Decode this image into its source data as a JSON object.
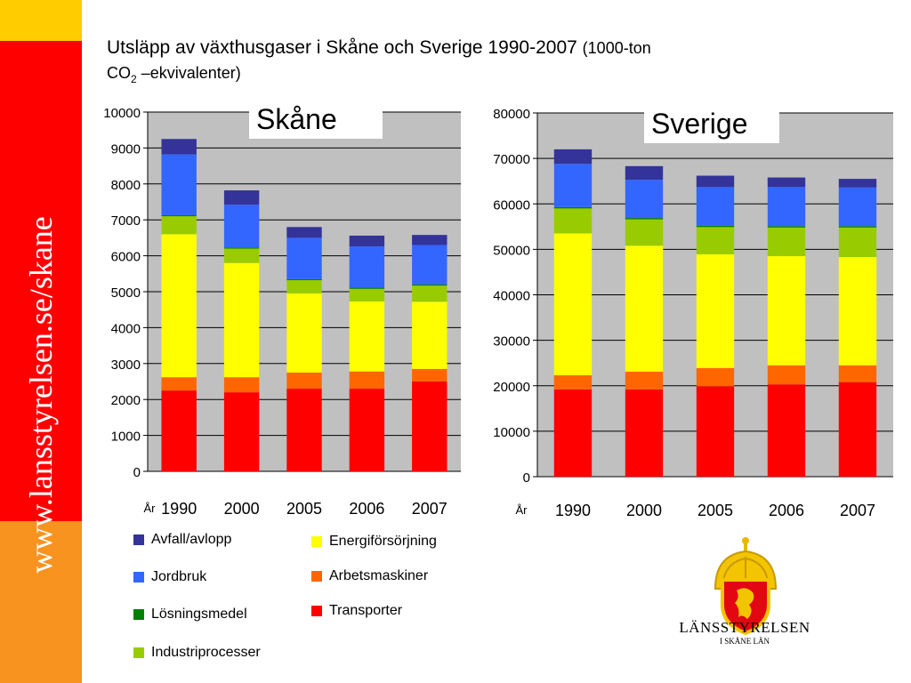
{
  "slide": {
    "url_text": "www.lansstyrelsen.se/skane",
    "title_main": "Utsläpp av växthusgaser i Skåne och Sverige 1990-2007",
    "title_unit_a": "(1000-ton",
    "title_unit_b": "CO",
    "title_unit_sub": "2",
    "title_unit_c": " –ekvivalenter)",
    "logo_name": "LÄNSSTYRELSEN",
    "logo_sub": "I SKÅNE LÄN"
  },
  "colors": {
    "yellow_band": "#FFCC00",
    "red_band": "#FF0000",
    "orange_band": "#F7931E",
    "plot_bg": "#C0C0C0"
  },
  "legend": [
    {
      "label": "Avfall/avlopp",
      "color": "#333399"
    },
    {
      "label": "Energiförsörjning",
      "color": "#FFFF00"
    },
    {
      "label": "Jordbruk",
      "color": "#3366FF"
    },
    {
      "label": "Arbetsmaskiner",
      "color": "#FF6600"
    },
    {
      "label": "Lösningsmedel",
      "color": "#008000"
    },
    {
      "label": "Transporter",
      "color": "#FF0000"
    },
    {
      "label": "Industriprocesser",
      "color": "#99CC00"
    }
  ],
  "chart_data": [
    {
      "type": "bar",
      "stacked": true,
      "title": "Skåne",
      "xlabel": "År",
      "ylabel": "",
      "ylim": [
        0,
        10000
      ],
      "yticks": [
        "0",
        "1000",
        "2000",
        "3000",
        "4000",
        "5000",
        "6000",
        "7000",
        "8000",
        "9000",
        "10000"
      ],
      "categories": [
        "1990",
        "2000",
        "2005",
        "2006",
        "2007"
      ],
      "grid": true,
      "series": [
        {
          "name": "Transporter",
          "color": "#FF0000",
          "values": [
            2250,
            2200,
            2300,
            2300,
            2500
          ]
        },
        {
          "name": "Arbetsmaskiner",
          "color": "#FF6600",
          "values": [
            370,
            420,
            450,
            480,
            350
          ]
        },
        {
          "name": "Energiförsörjning",
          "color": "#FFFF00",
          "values": [
            3980,
            3180,
            2200,
            1950,
            1870
          ]
        },
        {
          "name": "Industriprocesser",
          "color": "#99CC00",
          "values": [
            500,
            400,
            370,
            350,
            450
          ]
        },
        {
          "name": "Lösningsmedel",
          "color": "#008000",
          "values": [
            30,
            30,
            30,
            30,
            30
          ]
        },
        {
          "name": "Jordbruk",
          "color": "#3366FF",
          "values": [
            1690,
            1190,
            1150,
            1150,
            1100
          ]
        },
        {
          "name": "Avfall/avlopp",
          "color": "#333399",
          "values": [
            430,
            400,
            300,
            300,
            280
          ]
        }
      ]
    },
    {
      "type": "bar",
      "stacked": true,
      "title": "Sverige",
      "xlabel": "År",
      "ylabel": "",
      "ylim": [
        0,
        80000
      ],
      "yticks": [
        "0",
        "10000",
        "20000",
        "30000",
        "40000",
        "50000",
        "60000",
        "70000",
        "80000"
      ],
      "categories": [
        "1990",
        "2000",
        "2005",
        "2006",
        "2007"
      ],
      "grid": true,
      "series": [
        {
          "name": "Transporter",
          "color": "#FF0000",
          "values": [
            19200,
            19200,
            19900,
            20300,
            20800
          ]
        },
        {
          "name": "Arbetsmaskiner",
          "color": "#FF6600",
          "values": [
            3100,
            3900,
            4000,
            4200,
            3700
          ]
        },
        {
          "name": "Energiförsörjning",
          "color": "#FFFF00",
          "values": [
            31200,
            27700,
            25000,
            24000,
            23800
          ]
        },
        {
          "name": "Industriprocesser",
          "color": "#99CC00",
          "values": [
            5500,
            5800,
            6000,
            6300,
            6500
          ]
        },
        {
          "name": "Lösningsmedel",
          "color": "#008000",
          "values": [
            300,
            300,
            300,
            300,
            300
          ]
        },
        {
          "name": "Jordbruk",
          "color": "#3366FF",
          "values": [
            9500,
            8400,
            8500,
            8600,
            8500
          ]
        },
        {
          "name": "Avfall/avlopp",
          "color": "#333399",
          "values": [
            3200,
            3000,
            2500,
            2100,
            1900
          ]
        }
      ]
    }
  ]
}
